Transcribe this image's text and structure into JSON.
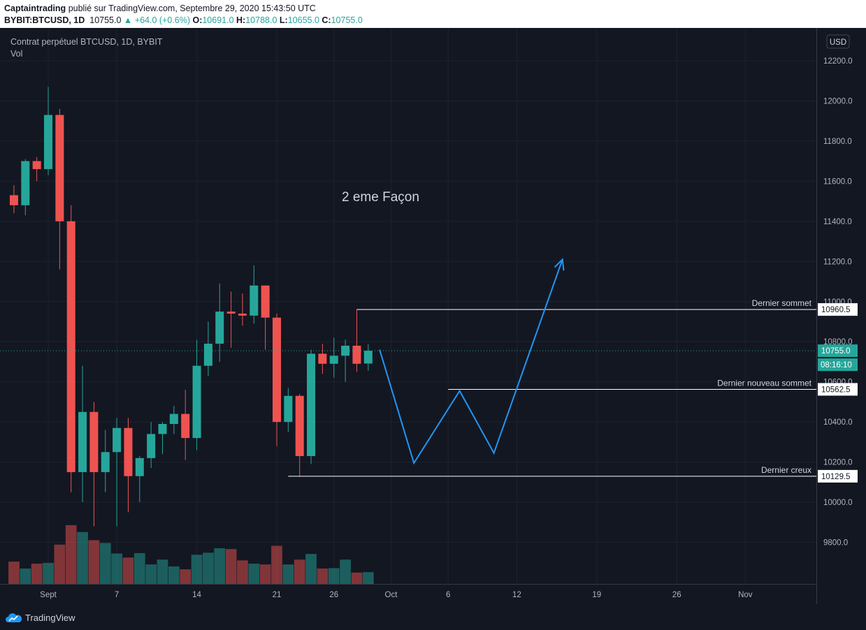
{
  "header": {
    "author": "Captaintrading",
    "published_text": "publié sur TradingView.com, Septembre 29, 2020 15:43:50 UTC",
    "symbol": "BYBIT:BTCUSD, 1D",
    "last_price": "10755.0",
    "change": "▲ +64.0 (+0.6%)",
    "o_label": "O:",
    "o_value": "10691.0",
    "h_label": "H:",
    "h_value": "10788.0",
    "l_label": "L:",
    "l_value": "10655.0",
    "c_label": "C:",
    "c_value": "10755.0"
  },
  "chart_data": {
    "type": "candlestick",
    "title": "Contrat perpétuel BTCUSD, 1D, BYBIT",
    "volume_label": "Vol",
    "currency": "USD",
    "ylim": [
      9600,
      12400
    ],
    "y_ticks": [
      "12200.0",
      "12000.0",
      "11800.0",
      "11600.0",
      "11400.0",
      "11200.0",
      "11000.0",
      "10800.0",
      "10600.0",
      "10400.0",
      "10200.0",
      "10000.0",
      "9800.0"
    ],
    "y_tick_values": [
      12200,
      12000,
      11800,
      11600,
      11400,
      11200,
      11000,
      10800,
      10600,
      10400,
      10200,
      10000,
      9800
    ],
    "x_tick_labels": [
      "Sept",
      "7",
      "14",
      "21",
      "26",
      "Oct",
      "6",
      "12",
      "19",
      "26",
      "Nov"
    ],
    "x_tick_dates": [
      "2020-09-01",
      "2020-09-07",
      "2020-09-14",
      "2020-09-21",
      "2020-09-26",
      "2020-10-01",
      "2020-10-06",
      "2020-10-12",
      "2020-10-19",
      "2020-10-26",
      "2020-11-01"
    ],
    "candles": [
      {
        "date": "2020-08-29",
        "open": 11530,
        "high": 11580,
        "low": 11440,
        "close": 11480
      },
      {
        "date": "2020-08-30",
        "open": 11480,
        "high": 11710,
        "low": 11430,
        "close": 11700
      },
      {
        "date": "2020-08-31",
        "open": 11700,
        "high": 11720,
        "low": 11600,
        "close": 11660
      },
      {
        "date": "2020-09-01",
        "open": 11660,
        "high": 12070,
        "low": 11630,
        "close": 11930
      },
      {
        "date": "2020-09-02",
        "open": 11930,
        "high": 11960,
        "low": 11160,
        "close": 11400
      },
      {
        "date": "2020-09-03",
        "open": 11400,
        "high": 11480,
        "low": 10050,
        "close": 10150
      },
      {
        "date": "2020-09-04",
        "open": 10150,
        "high": 10680,
        "low": 10000,
        "close": 10450
      },
      {
        "date": "2020-09-05",
        "open": 10450,
        "high": 10500,
        "low": 9880,
        "close": 10150
      },
      {
        "date": "2020-09-06",
        "open": 10150,
        "high": 10360,
        "low": 10050,
        "close": 10250
      },
      {
        "date": "2020-09-07",
        "open": 10250,
        "high": 10420,
        "low": 9880,
        "close": 10370
      },
      {
        "date": "2020-09-08",
        "open": 10370,
        "high": 10420,
        "low": 9950,
        "close": 10130
      },
      {
        "date": "2020-09-09",
        "open": 10130,
        "high": 10230,
        "low": 10000,
        "close": 10220
      },
      {
        "date": "2020-09-10",
        "open": 10220,
        "high": 10400,
        "low": 10170,
        "close": 10340
      },
      {
        "date": "2020-09-11",
        "open": 10340,
        "high": 10400,
        "low": 10240,
        "close": 10390
      },
      {
        "date": "2020-09-12",
        "open": 10390,
        "high": 10480,
        "low": 10340,
        "close": 10440
      },
      {
        "date": "2020-09-13",
        "open": 10440,
        "high": 10560,
        "low": 10210,
        "close": 10320
      },
      {
        "date": "2020-09-14",
        "open": 10320,
        "high": 10810,
        "low": 10260,
        "close": 10680
      },
      {
        "date": "2020-09-15",
        "open": 10680,
        "high": 10900,
        "low": 10630,
        "close": 10790
      },
      {
        "date": "2020-09-16",
        "open": 10790,
        "high": 11090,
        "low": 10700,
        "close": 10950
      },
      {
        "date": "2020-09-17",
        "open": 10950,
        "high": 11050,
        "low": 10770,
        "close": 10940
      },
      {
        "date": "2020-09-18",
        "open": 10940,
        "high": 11040,
        "low": 10880,
        "close": 10930
      },
      {
        "date": "2020-09-19",
        "open": 10930,
        "high": 11180,
        "low": 10890,
        "close": 11080
      },
      {
        "date": "2020-09-20",
        "open": 11080,
        "high": 11080,
        "low": 10760,
        "close": 10920
      },
      {
        "date": "2020-09-21",
        "open": 10920,
        "high": 10940,
        "low": 10280,
        "close": 10400
      },
      {
        "date": "2020-09-22",
        "open": 10400,
        "high": 10570,
        "low": 10350,
        "close": 10530
      },
      {
        "date": "2020-09-23",
        "open": 10530,
        "high": 10540,
        "low": 10130,
        "close": 10230
      },
      {
        "date": "2020-09-24",
        "open": 10230,
        "high": 10760,
        "low": 10190,
        "close": 10740
      },
      {
        "date": "2020-09-25",
        "open": 10740,
        "high": 10790,
        "low": 10640,
        "close": 10690
      },
      {
        "date": "2020-09-26",
        "open": 10690,
        "high": 10820,
        "low": 10620,
        "close": 10730
      },
      {
        "date": "2020-09-27",
        "open": 10730,
        "high": 10810,
        "low": 10600,
        "close": 10780
      },
      {
        "date": "2020-09-28",
        "open": 10780,
        "high": 10960,
        "low": 10650,
        "close": 10690
      },
      {
        "date": "2020-09-29",
        "open": 10691,
        "high": 10788,
        "low": 10655,
        "close": 10755
      }
    ],
    "volume_relative": [
      0.55,
      0.38,
      0.5,
      0.52,
      0.97,
      1.45,
      1.28,
      1.08,
      1.01,
      0.75,
      0.65,
      0.76,
      0.48,
      0.6,
      0.43,
      0.36,
      0.72,
      0.77,
      0.88,
      0.86,
      0.58,
      0.5,
      0.48,
      0.94,
      0.48,
      0.6,
      0.74,
      0.38,
      0.39,
      0.6,
      0.28,
      0.29
    ],
    "annotation": "2 eme Façon",
    "levels": [
      {
        "label": "Dernier sommet",
        "value": 10960.5,
        "price_label": "10960.5",
        "from_date": "2020-09-28"
      },
      {
        "label": "Dernier nouveau sommet",
        "value": 10562.5,
        "price_label": "10562.5",
        "from_date": "2020-10-06"
      },
      {
        "label": "Dernier creux",
        "value": 10129.5,
        "price_label": "10129.5",
        "from_date": "2020-09-22"
      }
    ],
    "current_price": {
      "value": 10755.0,
      "label": "10755.0",
      "countdown": "08:16:10"
    },
    "projection": [
      {
        "date": "2020-09-30",
        "value": 10760
      },
      {
        "date": "2020-10-03",
        "value": 10195
      },
      {
        "date": "2020-10-07",
        "value": 10555
      },
      {
        "date": "2020-10-10",
        "value": 10245
      },
      {
        "date": "2020-10-16",
        "value": 11210
      }
    ],
    "colors": {
      "up": "#26a69a",
      "down": "#ef5350",
      "projection": "#2196f3",
      "background": "#131722"
    }
  },
  "footer": {
    "brand": "TradingView"
  }
}
